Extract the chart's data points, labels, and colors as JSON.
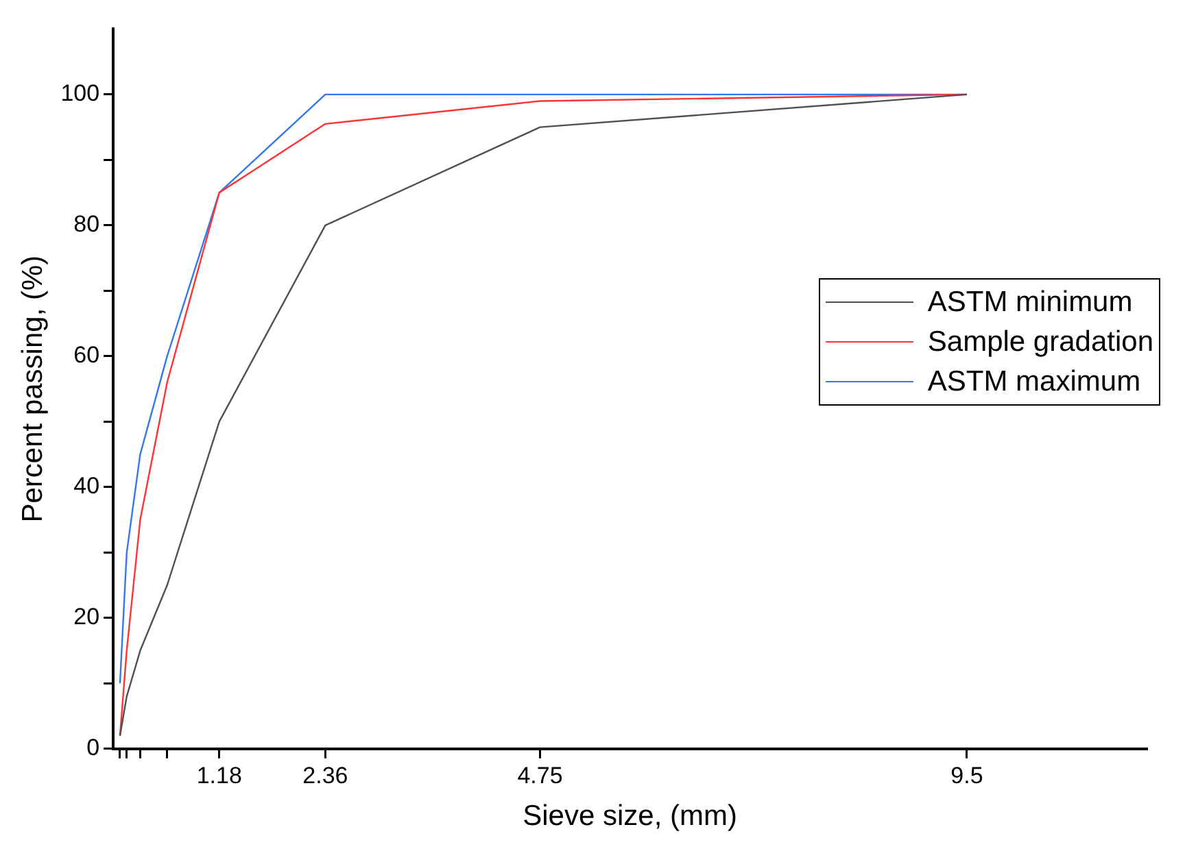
{
  "chart_data": {
    "type": "line",
    "xlabel": "Sieve size, (mm)",
    "ylabel": "Percent passing, (%)",
    "x": [
      0.075,
      0.15,
      0.3,
      0.6,
      1.18,
      2.36,
      4.75,
      9.5
    ],
    "series": [
      {
        "name": "ASTM minimum",
        "color": "#505050",
        "values": [
          2,
          8,
          15,
          25,
          50,
          80,
          95,
          100
        ]
      },
      {
        "name": "Sample gradation",
        "color": "#ff3333",
        "values": [
          2,
          15,
          35,
          56,
          85,
          95.5,
          99,
          100
        ]
      },
      {
        "name": "ASTM maximum",
        "color": "#3377ee",
        "values": [
          10,
          30,
          45,
          60,
          85,
          100,
          100,
          100
        ]
      }
    ],
    "xlim": [
      0,
      11.5
    ],
    "xticks": [
      {
        "value": 0.075,
        "label": null
      },
      {
        "value": 0.15,
        "label": null
      },
      {
        "value": 0.3,
        "label": null
      },
      {
        "value": 0.6,
        "label": null
      },
      1.18,
      2.36,
      4.75,
      9.5
    ],
    "ylim": [
      0,
      110
    ],
    "yticks": [
      0,
      {
        "value": 10,
        "label": null
      },
      20,
      {
        "value": 30,
        "label": null
      },
      40,
      {
        "value": 50,
        "label": null
      },
      60,
      {
        "value": 70,
        "label": null
      },
      80,
      {
        "value": 90,
        "label": null
      },
      100
    ],
    "grid": false,
    "legend": "right",
    "marker": "none",
    "line_style": "solid"
  }
}
